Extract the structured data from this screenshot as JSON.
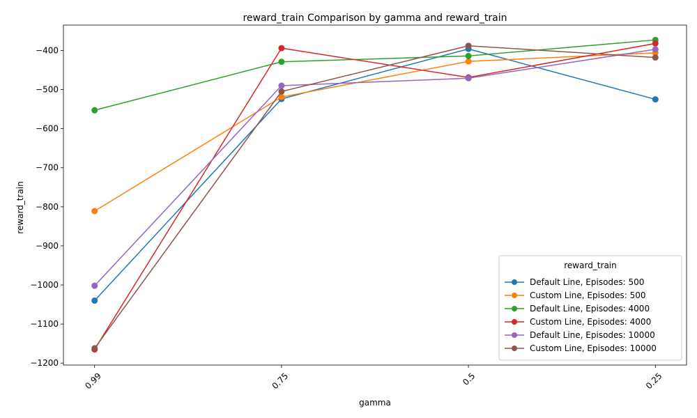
{
  "chart_data": {
    "type": "line",
    "title": "reward_train Comparison by gamma and reward_train",
    "xlabel": "gamma",
    "ylabel": "reward_train",
    "categories": [
      "0.99",
      "0.75",
      "0.5",
      "0.25"
    ],
    "ylim": [
      -1205,
      -335
    ],
    "yticks": [
      -1200,
      -1100,
      -1000,
      -900,
      -800,
      -700,
      -600,
      -500,
      -400
    ],
    "grid": false,
    "legend": {
      "title": "reward_train",
      "placement": "lower-right"
    },
    "series": [
      {
        "name": "Default Line, Episodes: 500",
        "color": "#1f77b4",
        "values": [
          -1040,
          -524,
          -396,
          -525
        ]
      },
      {
        "name": "Custom Line, Episodes: 500",
        "color": "#ff7f0e",
        "values": [
          -811,
          -519,
          -428,
          -406
        ]
      },
      {
        "name": "Default Line, Episodes: 4000",
        "color": "#2ca02c",
        "values": [
          -553,
          -429,
          -414,
          -373
        ]
      },
      {
        "name": "Custom Line, Episodes: 4000",
        "color": "#d62728",
        "values": [
          -1165,
          -394,
          -469,
          -382
        ]
      },
      {
        "name": "Default Line, Episodes: 10000",
        "color": "#9467bd",
        "values": [
          -1002,
          -490,
          -471,
          -397
        ]
      },
      {
        "name": "Custom Line, Episodes: 10000",
        "color": "#8c564b",
        "values": [
          -1162,
          -505,
          -388,
          -418
        ]
      }
    ]
  }
}
